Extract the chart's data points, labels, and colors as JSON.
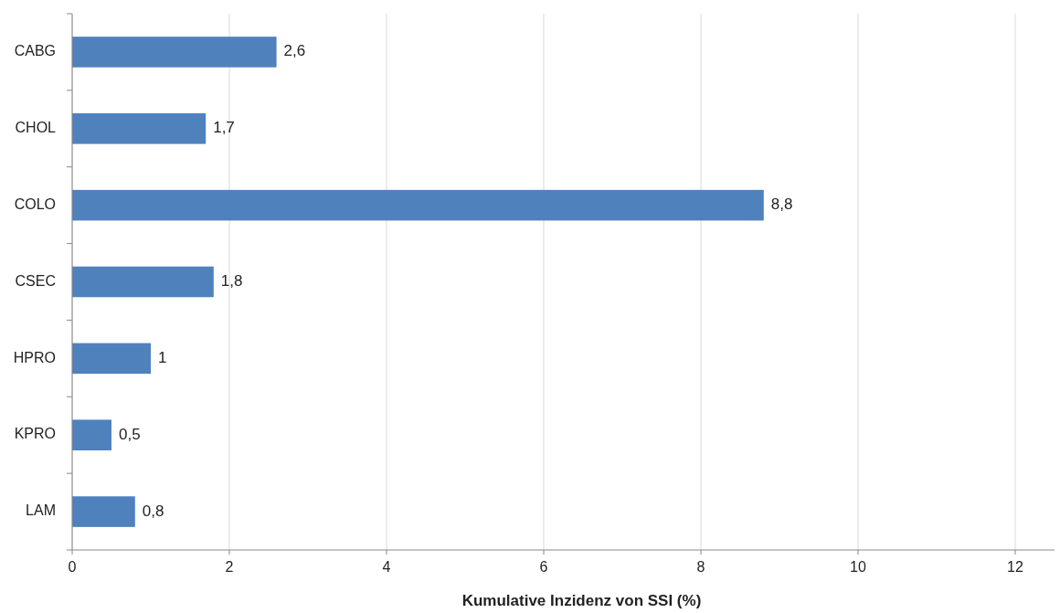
{
  "chart_data": {
    "type": "bar",
    "orientation": "horizontal",
    "xlabel": "Kumulative Inzidenz von SSI (%)",
    "categories": [
      "CABG",
      "CHOL",
      "COLO",
      "CSEC",
      "HPRO",
      "KPRO",
      "LAM"
    ],
    "values": [
      2.6,
      1.7,
      8.8,
      1.8,
      1,
      0.5,
      0.8
    ],
    "value_labels": [
      "2,6",
      "1,7",
      "8,8",
      "1,8",
      "1",
      "0,5",
      "0,8"
    ],
    "color": "#4f81bd",
    "xlim": [
      0,
      12.5
    ],
    "xticks": [
      0,
      2,
      4,
      6,
      8,
      10,
      12
    ],
    "grid": "x"
  }
}
